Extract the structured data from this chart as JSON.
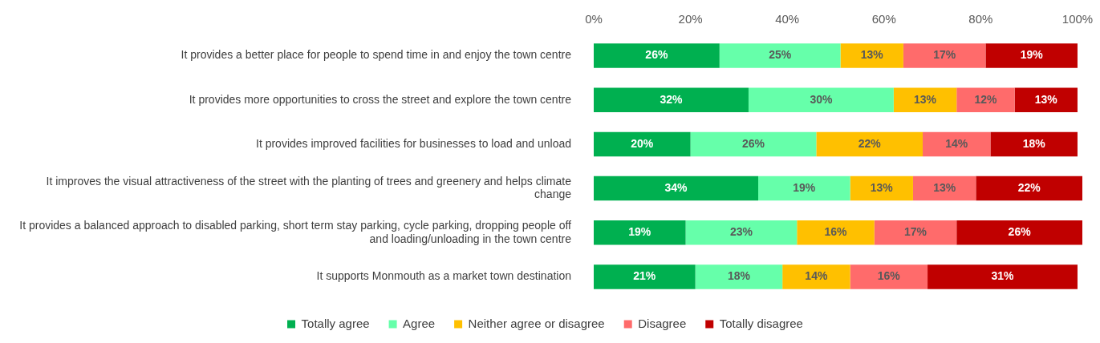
{
  "chart_data": {
    "type": "bar",
    "orientation": "horizontal",
    "stacked": true,
    "categories": [
      "It provides a better place for people to spend time in and enjoy the town centre",
      "It provides more opportunities to cross the street and explore the town centre",
      "It provides improved facilities for businesses to load and unload",
      "It improves the visual attractiveness of the street with the planting of trees and greenery and helps climate change",
      "It provides a balanced approach to disabled parking, short term stay parking, cycle parking, dropping people off and loading/unloading in the town centre",
      "It supports Monmouth as a market town destination"
    ],
    "series": [
      {
        "name": "Totally agree",
        "color": "#00b050",
        "values": [
          26,
          32,
          20,
          34,
          19,
          21
        ],
        "value_labels": [
          "26%",
          "32%",
          "20%",
          "34%",
          "19%",
          "21%"
        ]
      },
      {
        "name": "Agree",
        "color": "#66ffaa",
        "values": [
          25,
          30,
          26,
          19,
          23,
          18
        ],
        "value_labels": [
          "25%",
          "30%",
          "26%",
          "19%",
          "23%",
          "18%"
        ]
      },
      {
        "name": "Neither agree or disagree",
        "color": "#ffc000",
        "values": [
          13,
          13,
          22,
          13,
          16,
          14
        ],
        "value_labels": [
          "13%",
          "13%",
          "22%",
          "13%",
          "16%",
          "14%"
        ]
      },
      {
        "name": "Disagree",
        "color": "#ff6b6b",
        "values": [
          17,
          12,
          14,
          13,
          17,
          16
        ],
        "value_labels": [
          "17%",
          "12%",
          "14%",
          "13%",
          "17%",
          "16%"
        ]
      },
      {
        "name": "Totally disagree",
        "color": "#c00000",
        "values": [
          19,
          13,
          18,
          22,
          26,
          31
        ],
        "value_labels": [
          "19%",
          "13%",
          "18%",
          "22%",
          "26%",
          "31%"
        ]
      }
    ],
    "xlim": [
      0,
      101
    ],
    "xticks": [
      {
        "value": 0,
        "label": "0%"
      },
      {
        "value": 20,
        "label": "20%"
      },
      {
        "value": 40,
        "label": "40%"
      },
      {
        "value": 60,
        "label": "60%"
      },
      {
        "value": 80,
        "label": "80%"
      },
      {
        "value": 100,
        "label": "100%"
      }
    ],
    "legend": "bottom"
  }
}
